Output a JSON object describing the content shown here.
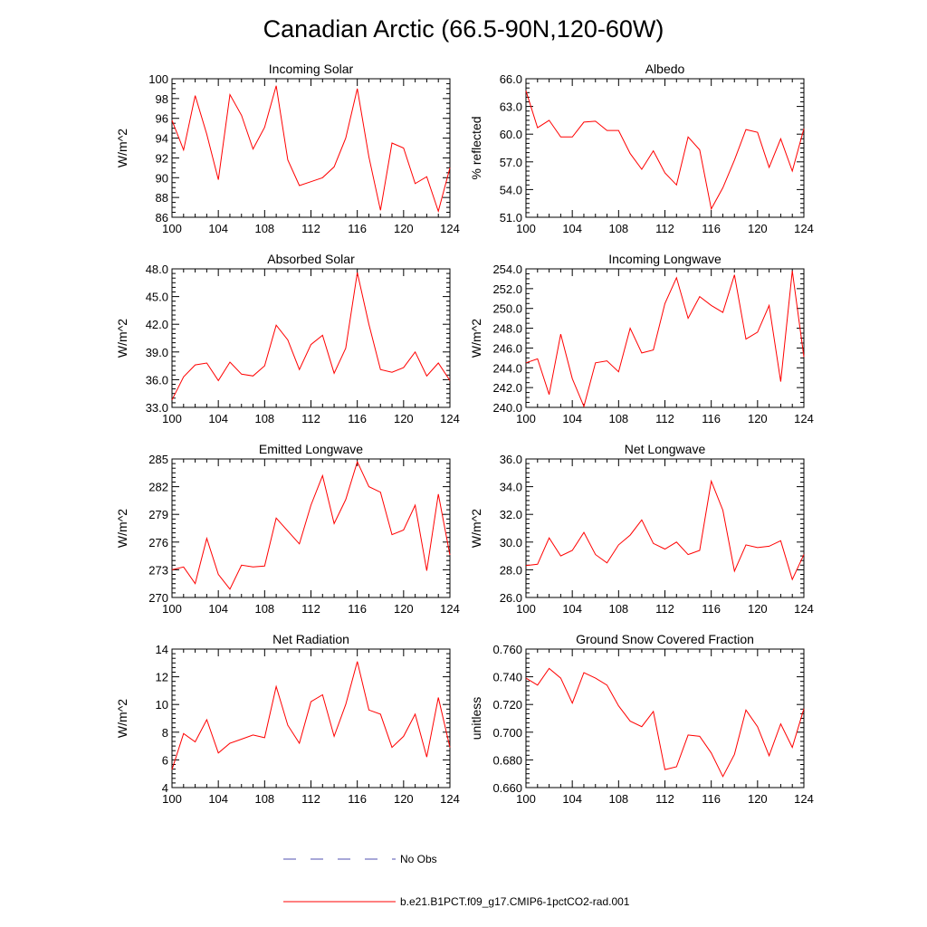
{
  "title": "Canadian Arctic (66.5-90N,120-60W)",
  "legend": {
    "no_obs": "No Obs",
    "model": "b.e21.B1PCT.f09_g17.CMIP6-1pctCO2-rad.001",
    "no_obs_color": "#5050b0",
    "model_color": "#ff0000"
  },
  "chart_data": [
    {
      "type": "line",
      "title": "Incoming Solar",
      "ylabel": "W/m^2",
      "xlim": [
        100,
        124
      ],
      "ylim": [
        86,
        100
      ],
      "xticks": [
        "100",
        "104",
        "108",
        "112",
        "116",
        "120",
        "124"
      ],
      "yticks": [
        "86",
        "88",
        "90",
        "92",
        "94",
        "96",
        "98",
        "100"
      ],
      "series": [
        {
          "values": [
            95.8,
            92.8,
            98.3,
            94.4,
            89.8,
            98.4,
            96.3,
            92.9,
            95.1,
            99.3,
            91.8,
            89.2,
            89.6,
            90.0,
            91.1,
            94.0,
            99.0,
            92.1,
            86.7,
            93.5,
            93.0,
            89.4,
            90.1,
            86.6,
            91.0
          ]
        }
      ]
    },
    {
      "type": "line",
      "title": "Albedo",
      "ylabel": "% reflected",
      "xlim": [
        100,
        124
      ],
      "ylim": [
        51,
        66
      ],
      "xticks": [
        "100",
        "104",
        "108",
        "112",
        "116",
        "120",
        "124"
      ],
      "yticks": [
        "51.0",
        "54.0",
        "57.0",
        "60.0",
        "63.0",
        "66.0"
      ],
      "series": [
        {
          "values": [
            64.7,
            60.7,
            61.5,
            59.7,
            59.7,
            61.3,
            61.4,
            60.4,
            60.4,
            57.9,
            56.2,
            58.2,
            55.8,
            54.5,
            59.7,
            58.3,
            51.9,
            54.2,
            57.2,
            60.5,
            60.2,
            56.4,
            59.5,
            56.0,
            60.6
          ]
        }
      ]
    },
    {
      "type": "line",
      "title": "Absorbed Solar",
      "ylabel": "W/m^2",
      "xlim": [
        100,
        124
      ],
      "ylim": [
        33,
        48
      ],
      "xticks": [
        "100",
        "104",
        "108",
        "112",
        "116",
        "120",
        "124"
      ],
      "yticks": [
        "33.0",
        "36.0",
        "39.0",
        "42.0",
        "45.0",
        "48.0"
      ],
      "series": [
        {
          "values": [
            33.8,
            36.3,
            37.6,
            37.8,
            35.9,
            37.9,
            36.6,
            36.4,
            37.5,
            41.9,
            40.3,
            37.1,
            39.8,
            40.8,
            36.7,
            39.4,
            47.6,
            42.0,
            37.1,
            36.8,
            37.3,
            39.0,
            36.4,
            37.8,
            35.9
          ]
        }
      ]
    },
    {
      "type": "line",
      "title": "Incoming Longwave",
      "ylabel": "W/m^2",
      "xlim": [
        100,
        124
      ],
      "ylim": [
        240,
        254
      ],
      "xticks": [
        "100",
        "104",
        "108",
        "112",
        "116",
        "120",
        "124"
      ],
      "yticks": [
        "240.0",
        "242.0",
        "244.0",
        "246.0",
        "248.0",
        "250.0",
        "252.0",
        "254.0"
      ],
      "series": [
        {
          "values": [
            244.5,
            244.9,
            241.3,
            247.4,
            242.9,
            240.1,
            244.5,
            244.7,
            243.6,
            248.0,
            245.5,
            245.8,
            250.5,
            253.1,
            249.0,
            251.2,
            250.3,
            249.6,
            253.4,
            246.9,
            247.6,
            250.3,
            242.6,
            253.8,
            245.1
          ]
        }
      ]
    },
    {
      "type": "line",
      "title": "Emitted Longwave",
      "ylabel": "W/m^2",
      "xlim": [
        100,
        124
      ],
      "ylim": [
        270,
        285
      ],
      "xticks": [
        "100",
        "104",
        "108",
        "112",
        "116",
        "120",
        "124"
      ],
      "yticks": [
        "270",
        "273",
        "276",
        "279",
        "282",
        "285"
      ],
      "series": [
        {
          "values": [
            273.0,
            273.3,
            271.5,
            276.4,
            272.5,
            270.9,
            273.5,
            273.3,
            273.4,
            278.6,
            277.2,
            275.8,
            280.0,
            283.2,
            278.0,
            280.6,
            284.7,
            282.0,
            281.4,
            276.8,
            277.3,
            280.0,
            272.9,
            281.2,
            274.6
          ]
        }
      ]
    },
    {
      "type": "line",
      "title": "Net Longwave",
      "ylabel": "W/m^2",
      "xlim": [
        100,
        124
      ],
      "ylim": [
        26,
        36
      ],
      "xticks": [
        "100",
        "104",
        "108",
        "112",
        "116",
        "120",
        "124"
      ],
      "yticks": [
        "26.0",
        "28.0",
        "30.0",
        "32.0",
        "34.0",
        "36.0"
      ],
      "series": [
        {
          "values": [
            28.3,
            28.4,
            30.3,
            29.0,
            29.4,
            30.7,
            29.1,
            28.5,
            29.8,
            30.5,
            31.6,
            29.9,
            29.5,
            30.0,
            29.1,
            29.4,
            34.4,
            32.3,
            27.9,
            29.8,
            29.6,
            29.7,
            30.1,
            27.3,
            29.1
          ]
        }
      ]
    },
    {
      "type": "line",
      "title": "Net Radiation",
      "ylabel": "W/m^2",
      "xlim": [
        100,
        124
      ],
      "ylim": [
        4,
        14
      ],
      "xticks": [
        "100",
        "104",
        "108",
        "112",
        "116",
        "120",
        "124"
      ],
      "yticks": [
        "4",
        "6",
        "8",
        "10",
        "12",
        "14"
      ],
      "series": [
        {
          "values": [
            5.3,
            7.9,
            7.3,
            8.9,
            6.5,
            7.2,
            7.5,
            7.8,
            7.6,
            11.3,
            8.5,
            7.2,
            10.2,
            10.7,
            7.7,
            10.0,
            13.1,
            9.6,
            9.3,
            6.9,
            7.7,
            9.3,
            6.2,
            10.5,
            6.9
          ]
        }
      ]
    },
    {
      "type": "line",
      "title": "Ground Snow Covered Fraction",
      "ylabel": "unitless",
      "xlim": [
        100,
        124
      ],
      "ylim": [
        0.66,
        0.76
      ],
      "xticks": [
        "100",
        "104",
        "108",
        "112",
        "116",
        "120",
        "124"
      ],
      "yticks": [
        "0.660",
        "0.680",
        "0.700",
        "0.720",
        "0.740",
        "0.760"
      ],
      "series": [
        {
          "values": [
            0.739,
            0.734,
            0.746,
            0.739,
            0.721,
            0.743,
            0.739,
            0.734,
            0.719,
            0.708,
            0.704,
            0.715,
            0.673,
            0.675,
            0.698,
            0.697,
            0.685,
            0.668,
            0.684,
            0.716,
            0.704,
            0.683,
            0.706,
            0.689,
            0.717
          ]
        }
      ]
    }
  ]
}
